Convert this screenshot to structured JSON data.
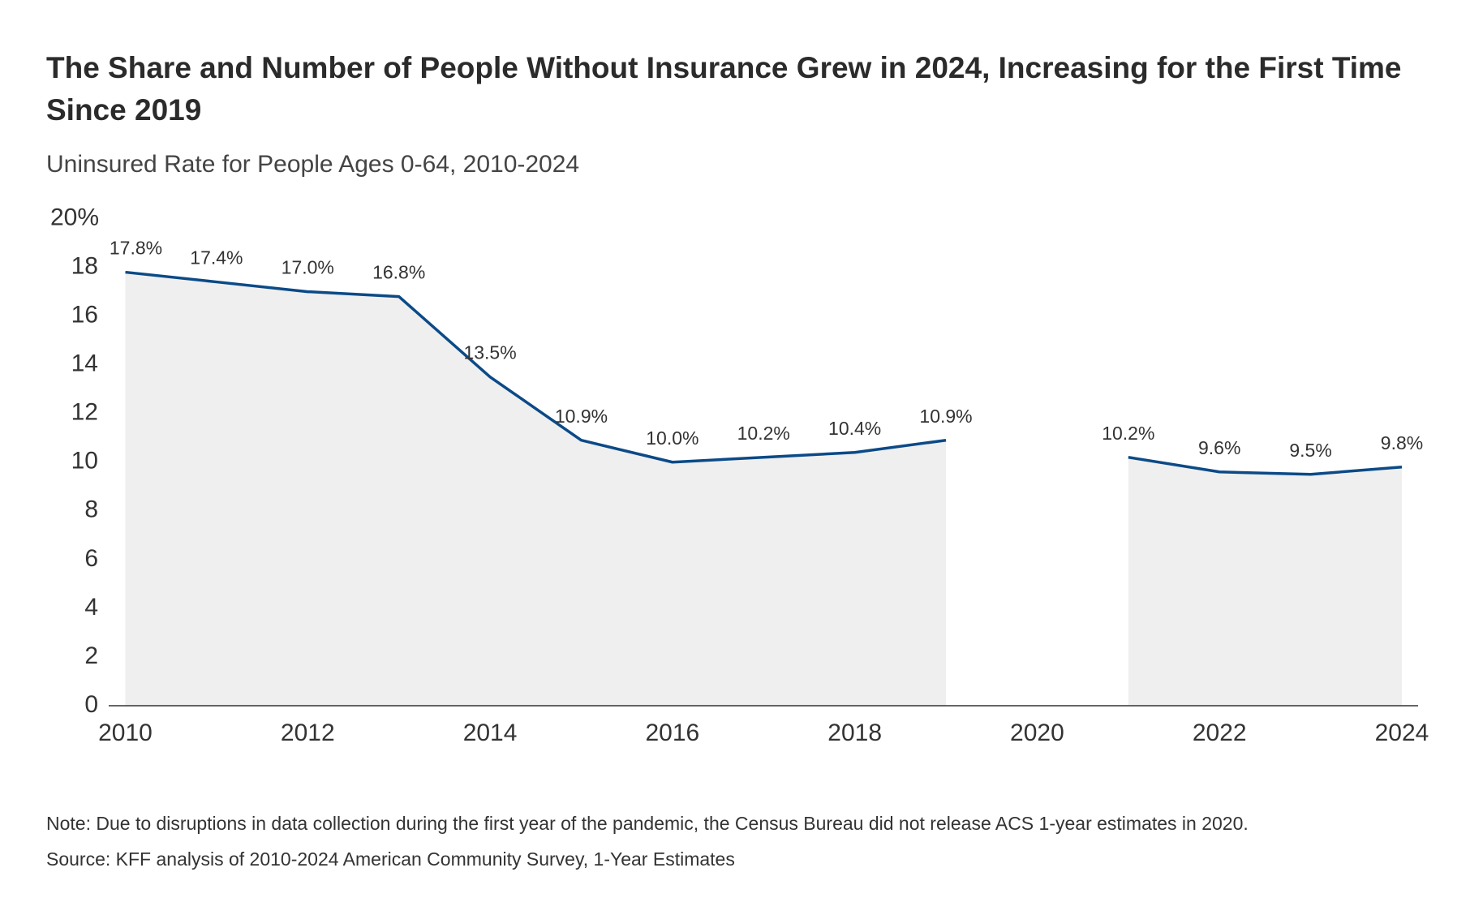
{
  "chart_data": {
    "type": "line",
    "title": "The Share and Number of People Without Insurance Grew in 2024, Increasing for the First Time Since 2019",
    "subtitle": "Uninsured Rate for People Ages 0-64, 2010-2024",
    "x": [
      2010,
      2011,
      2012,
      2013,
      2014,
      2015,
      2016,
      2017,
      2018,
      2019,
      2020,
      2021,
      2022,
      2023,
      2024
    ],
    "series": [
      {
        "name": "Uninsured Rate",
        "color": "#0b4a87",
        "values": [
          17.8,
          17.4,
          17.0,
          16.8,
          13.5,
          10.9,
          10.0,
          10.2,
          10.4,
          10.9,
          null,
          10.2,
          9.6,
          9.5,
          9.8
        ],
        "value_labels": [
          "17.8%",
          "17.4%",
          "17.0%",
          "16.8%",
          "13.5%",
          "10.9%",
          "10.0%",
          "10.2%",
          "10.4%",
          "10.9%",
          null,
          "10.2%",
          "9.6%",
          "9.5%",
          "9.8%"
        ]
      }
    ],
    "area_color": "#efefef",
    "xlim": [
      2010,
      2024
    ],
    "xticks": [
      2010,
      2012,
      2014,
      2016,
      2018,
      2020,
      2022,
      2024
    ],
    "ylim": [
      0,
      20
    ],
    "yticks": [
      0,
      2,
      4,
      6,
      8,
      10,
      12,
      14,
      16,
      18,
      {
        "value": 20,
        "label": "20%"
      }
    ],
    "grid": false,
    "note": "Note: Due to disruptions in data collection during the first year of the pandemic, the Census Bureau did not release ACS 1-year estimates in 2020.",
    "source": "Source: KFF analysis of 2010-2024 American Community Survey, 1-Year Estimates"
  }
}
